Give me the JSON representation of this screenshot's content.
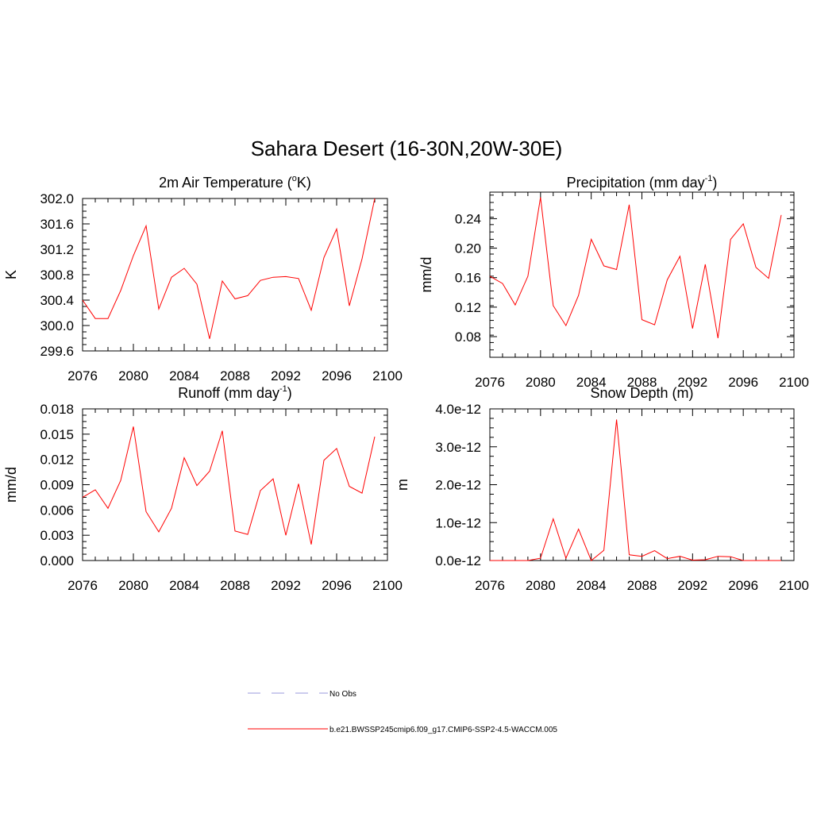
{
  "title": "Sahara Desert (16-30N,20W-30E)",
  "chart_data": [
    {
      "type": "line",
      "title_main": "2m Air Temperature (",
      "title_sup": "o",
      "title_end": "K)",
      "ylabel": "K",
      "xlim": [
        2076,
        2100
      ],
      "ylim": [
        299.6,
        302.0
      ],
      "xticks": [
        "2076",
        "2080",
        "2084",
        "2088",
        "2092",
        "2096",
        "2100"
      ],
      "yticks": [
        {
          "v": 299.6,
          "t": "299.6"
        },
        {
          "v": 300.0,
          "t": "300.0"
        },
        {
          "v": 300.4,
          "t": "300.4"
        },
        {
          "v": 300.8,
          "t": "300.8"
        },
        {
          "v": 301.2,
          "t": "301.2"
        },
        {
          "v": 301.6,
          "t": "301.6"
        },
        {
          "v": 302.0,
          "t": "302.0"
        }
      ],
      "x": [
        2076,
        2077,
        2078,
        2079,
        2080,
        2081,
        2082,
        2083,
        2084,
        2085,
        2086,
        2087,
        2088,
        2089,
        2090,
        2091,
        2092,
        2093,
        2094,
        2095,
        2096,
        2097,
        2098,
        2099
      ],
      "values": [
        300.4,
        300.11,
        300.11,
        300.55,
        301.1,
        301.57,
        300.26,
        300.76,
        300.9,
        300.65,
        299.79,
        300.7,
        300.42,
        300.47,
        300.71,
        300.76,
        300.77,
        300.74,
        300.24,
        301.07,
        301.52,
        300.31,
        301.05,
        302.0
      ]
    },
    {
      "type": "line",
      "title_main": "Precipitation (mm day",
      "title_sup": "-1",
      "title_end": ")",
      "ylabel": "mm/d",
      "xlim": [
        2076,
        2100
      ],
      "ylim": [
        0.052,
        0.276
      ],
      "xticks": [
        "2076",
        "2080",
        "2084",
        "2088",
        "2092",
        "2096",
        "2100"
      ],
      "yticks": [
        {
          "v": 0.08,
          "t": "0.08"
        },
        {
          "v": 0.12,
          "t": "0.12"
        },
        {
          "v": 0.16,
          "t": "0.16"
        },
        {
          "v": 0.2,
          "t": "0.20"
        },
        {
          "v": 0.24,
          "t": "0.24"
        }
      ],
      "x": [
        2076,
        2077,
        2078,
        2079,
        2080,
        2081,
        2082,
        2083,
        2084,
        2085,
        2086,
        2087,
        2088,
        2089,
        2090,
        2091,
        2092,
        2093,
        2094,
        2095,
        2096,
        2097,
        2098,
        2099
      ],
      "values": [
        0.162,
        0.152,
        0.123,
        0.162,
        0.269,
        0.122,
        0.095,
        0.136,
        0.212,
        0.176,
        0.171,
        0.259,
        0.103,
        0.096,
        0.157,
        0.189,
        0.091,
        0.178,
        0.078,
        0.212,
        0.233,
        0.174,
        0.159,
        0.245
      ]
    },
    {
      "type": "line",
      "title_main": "Runoff (mm day",
      "title_sup": "-1",
      "title_end": ")",
      "ylabel": "mm/d",
      "xlim": [
        2076,
        2100
      ],
      "ylim": [
        0.0,
        0.018
      ],
      "xticks": [
        "2076",
        "2080",
        "2084",
        "2088",
        "2092",
        "2096",
        "2100"
      ],
      "yticks": [
        {
          "v": 0.0,
          "t": "0.000"
        },
        {
          "v": 0.003,
          "t": "0.003"
        },
        {
          "v": 0.006,
          "t": "0.006"
        },
        {
          "v": 0.009,
          "t": "0.009"
        },
        {
          "v": 0.012,
          "t": "0.012"
        },
        {
          "v": 0.015,
          "t": "0.015"
        },
        {
          "v": 0.018,
          "t": "0.018"
        }
      ],
      "x": [
        2076,
        2077,
        2078,
        2079,
        2080,
        2081,
        2082,
        2083,
        2084,
        2085,
        2086,
        2087,
        2088,
        2089,
        2090,
        2091,
        2092,
        2093,
        2094,
        2095,
        2096,
        2097,
        2098,
        2099
      ],
      "values": [
        0.0075,
        0.0084,
        0.0062,
        0.0095,
        0.0159,
        0.0058,
        0.0034,
        0.0062,
        0.0122,
        0.0089,
        0.0106,
        0.0154,
        0.0035,
        0.0031,
        0.0083,
        0.0097,
        0.003,
        0.0091,
        0.0019,
        0.0119,
        0.0133,
        0.0088,
        0.008,
        0.0147
      ]
    },
    {
      "type": "line",
      "title_main": "Snow Depth (m)",
      "title_sup": "",
      "title_end": "",
      "ylabel": "m",
      "xlim": [
        2076,
        2100
      ],
      "ylim": [
        0.0,
        4e-12
      ],
      "xticks": [
        "2076",
        "2080",
        "2084",
        "2088",
        "2092",
        "2096",
        "2100"
      ],
      "yticks": [
        {
          "v": 0.0,
          "t": "0.0e-12"
        },
        {
          "v": 1e-12,
          "t": "1.0e-12"
        },
        {
          "v": 2e-12,
          "t": "2.0e-12"
        },
        {
          "v": 3e-12,
          "t": "3.0e-12"
        },
        {
          "v": 4e-12,
          "t": "4.0e-12"
        }
      ],
      "x": [
        2076,
        2077,
        2078,
        2079,
        2080,
        2081,
        2082,
        2083,
        2084,
        2085,
        2086,
        2087,
        2088,
        2089,
        2090,
        2091,
        2092,
        2093,
        2094,
        2095,
        2096,
        2097,
        2098,
        2099
      ],
      "values": [
        0.0,
        0.0,
        0.0,
        0.0,
        6e-14,
        1.1e-12,
        6e-14,
        8.3e-13,
        0.0,
        2.7e-13,
        3.72e-12,
        1.5e-13,
        1.1e-13,
        2.6e-13,
        5e-14,
        1.1e-13,
        1e-14,
        2e-14,
        1.1e-13,
        1e-13,
        0.0,
        0.0,
        0.0,
        0.0
      ]
    }
  ],
  "legend": [
    {
      "label": "No Obs",
      "color": "#9999dd",
      "style": "dashed"
    },
    {
      "label": "b.e21.BWSSP245cmip6.f09_g17.CMIP6-SSP2-4.5-WACCM.005",
      "color": "#ff0000",
      "style": "solid"
    }
  ],
  "colors": {
    "series": "#ff0000",
    "axis": "#000000"
  }
}
